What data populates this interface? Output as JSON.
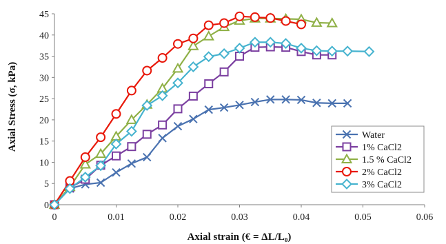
{
  "chart_data": {
    "type": "line",
    "title": "",
    "xlabel": "Axial strain (€ = ΔL/L₀)",
    "ylabel": "Axial Stress (σ, kPa)",
    "xlim": [
      0,
      0.06
    ],
    "ylim": [
      0,
      45
    ],
    "x_ticks": [
      "0",
      "0.01",
      "0.02",
      "0.03",
      "0.04",
      "0.05",
      "0.06"
    ],
    "y_ticks": [
      "0",
      "5",
      "10",
      "15",
      "20",
      "25",
      "30",
      "35",
      "40",
      "45"
    ],
    "grid": false,
    "legend_position": "bottom-right",
    "series": [
      {
        "name": "Water",
        "color": "#4a72b0",
        "marker": "x",
        "x": [
          0,
          0.0025,
          0.005,
          0.0075,
          0.01,
          0.0125,
          0.015,
          0.0175,
          0.02,
          0.0225,
          0.025,
          0.0275,
          0.03,
          0.0325,
          0.035,
          0.0375,
          0.04,
          0.0425,
          0.045,
          0.0475
        ],
        "y": [
          0,
          3.8,
          4.8,
          5.2,
          7.6,
          9.7,
          11.2,
          15.7,
          18.5,
          20.2,
          22.4,
          22.9,
          23.5,
          24.2,
          24.8,
          24.8,
          24.7,
          24.0,
          23.9,
          23.9
        ]
      },
      {
        "name": "1% CaCl2",
        "color": "#7b3fa0",
        "marker": "square",
        "x": [
          0,
          0.0025,
          0.005,
          0.0075,
          0.01,
          0.0125,
          0.015,
          0.0175,
          0.02,
          0.0225,
          0.025,
          0.0275,
          0.03,
          0.0325,
          0.035,
          0.0375,
          0.04,
          0.0425,
          0.045
        ],
        "y": [
          0,
          4.0,
          6.0,
          9.3,
          11.5,
          13.7,
          16.6,
          18.8,
          22.6,
          25.6,
          28.5,
          31.3,
          35.0,
          37.1,
          37.2,
          37.1,
          36.1,
          35.3,
          35.3
        ]
      },
      {
        "name": "1.5 % CaCl2",
        "color": "#8fb046",
        "marker": "triangle",
        "x": [
          0,
          0.0025,
          0.005,
          0.0075,
          0.01,
          0.0125,
          0.015,
          0.0175,
          0.02,
          0.0225,
          0.025,
          0.0275,
          0.03,
          0.0325,
          0.035,
          0.0375,
          0.04,
          0.0425,
          0.045
        ],
        "y": [
          0,
          4.2,
          9.5,
          12.0,
          16.1,
          20.0,
          23.6,
          27.4,
          32.1,
          37.4,
          39.7,
          41.9,
          43.4,
          43.9,
          43.9,
          43.8,
          43.7,
          42.9,
          42.8
        ]
      },
      {
        "name": "2% CaCl2",
        "color": "#e8180a",
        "marker": "circle",
        "x": [
          0,
          0.0025,
          0.005,
          0.0075,
          0.01,
          0.0125,
          0.015,
          0.0175,
          0.02,
          0.0225,
          0.025,
          0.0275,
          0.03,
          0.0325,
          0.035,
          0.0375,
          0.04
        ],
        "y": [
          0,
          5.6,
          11.2,
          15.9,
          21.4,
          26.9,
          31.6,
          34.6,
          37.9,
          39.2,
          42.3,
          42.8,
          44.4,
          44.2,
          44.0,
          43.3,
          42.5
        ]
      },
      {
        "name": "3% CaCl2",
        "color": "#46b3cf",
        "marker": "diamond",
        "x": [
          0,
          0.0025,
          0.005,
          0.0075,
          0.01,
          0.0125,
          0.015,
          0.0175,
          0.02,
          0.0225,
          0.025,
          0.0275,
          0.03,
          0.0325,
          0.035,
          0.0375,
          0.04,
          0.0425,
          0.045,
          0.0475,
          0.051
        ],
        "y": [
          0,
          3.8,
          6.5,
          9.2,
          14.3,
          17.3,
          23.4,
          25.7,
          28.7,
          32.5,
          34.9,
          35.6,
          36.9,
          38.3,
          38.3,
          38.0,
          36.9,
          36.3,
          36.2,
          36.2,
          36.1
        ]
      }
    ]
  }
}
